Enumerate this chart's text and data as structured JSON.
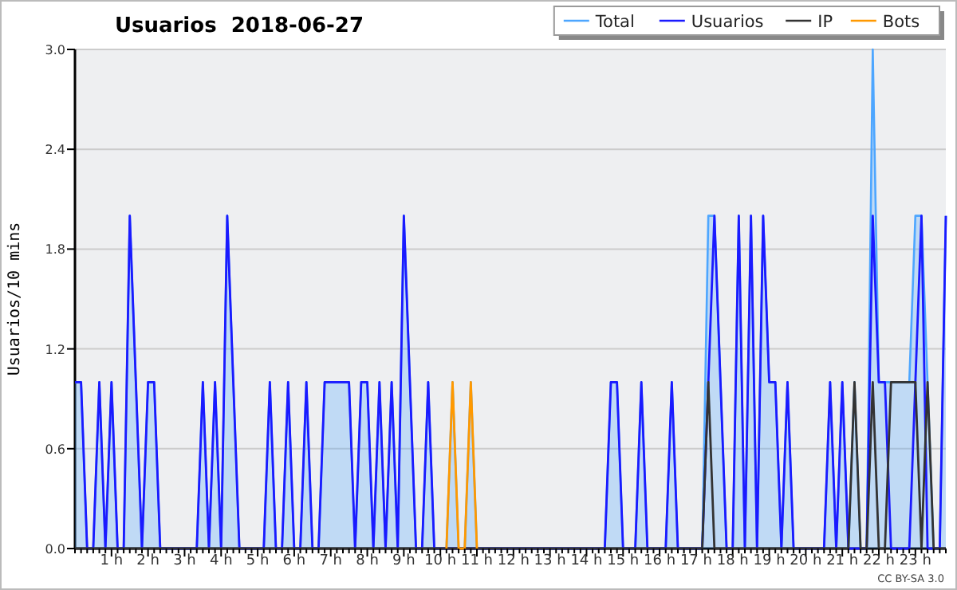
{
  "chart_data": {
    "type": "area",
    "title": "Usuarios  2018-06-27",
    "ylabel": "Usuarios/10 mins",
    "categories": [
      null,
      null,
      null,
      null,
      null,
      null,
      "1 h",
      null,
      null,
      null,
      null,
      null,
      "2 h",
      null,
      null,
      null,
      null,
      null,
      "3 h",
      null,
      null,
      null,
      null,
      null,
      "4 h",
      null,
      null,
      null,
      null,
      null,
      "5 h",
      null,
      null,
      null,
      null,
      null,
      "6 h",
      null,
      null,
      null,
      null,
      null,
      "7 h",
      null,
      null,
      null,
      null,
      null,
      "8 h",
      null,
      null,
      null,
      null,
      null,
      "9 h",
      null,
      null,
      null,
      null,
      null,
      "10 h",
      null,
      null,
      null,
      null,
      null,
      "11 h",
      null,
      null,
      null,
      null,
      null,
      "12 h",
      null,
      null,
      null,
      null,
      null,
      "13 h",
      null,
      null,
      null,
      null,
      null,
      "14 h",
      null,
      null,
      null,
      null,
      null,
      "15 h",
      null,
      null,
      null,
      null,
      null,
      "16 h",
      null,
      null,
      null,
      null,
      null,
      "17 h",
      null,
      null,
      null,
      null,
      null,
      "18 h",
      null,
      null,
      null,
      null,
      null,
      "19 h",
      null,
      null,
      null,
      null,
      null,
      "20 h",
      null,
      null,
      null,
      null,
      null,
      "21 h",
      null,
      null,
      null,
      null,
      null,
      "22 h",
      null,
      null,
      null,
      null,
      null,
      "23 h",
      null,
      null,
      null,
      null,
      null
    ],
    "series": [
      {
        "name": "Total",
        "color": "#4da6ff",
        "values": [
          1,
          1,
          0,
          0,
          1,
          0,
          1,
          0,
          0,
          2,
          1,
          0,
          1,
          1,
          0,
          0,
          0,
          0,
          0,
          0,
          0,
          1,
          0,
          1,
          0,
          2,
          1,
          0,
          0,
          0,
          0,
          0,
          1,
          0,
          0,
          1,
          0,
          0,
          1,
          0,
          0,
          1,
          1,
          1,
          1,
          1,
          0,
          1,
          1,
          0,
          1,
          0,
          1,
          0,
          2,
          1,
          0,
          0,
          1,
          0,
          0,
          0,
          1,
          0,
          0,
          1,
          0,
          0,
          0,
          0,
          0,
          0,
          0,
          0,
          0,
          0,
          0,
          0,
          0,
          0,
          0,
          0,
          0,
          0,
          0,
          0,
          0,
          0,
          1,
          1,
          0,
          0,
          0,
          1,
          0,
          0,
          0,
          0,
          1,
          0,
          0,
          0,
          0,
          0,
          2,
          2,
          1,
          0,
          0,
          2,
          0,
          2,
          0,
          2,
          1,
          1,
          0,
          1,
          0,
          0,
          0,
          0,
          0,
          0,
          1,
          0,
          1,
          0,
          1,
          0,
          0,
          3,
          1,
          1,
          1,
          1,
          1,
          1,
          2,
          2,
          1,
          0,
          0,
          2
        ]
      },
      {
        "name": "Usuarios",
        "type": "line",
        "color": "#1a1aff",
        "values": [
          1,
          1,
          0,
          0,
          1,
          0,
          1,
          0,
          0,
          2,
          1,
          0,
          1,
          1,
          0,
          0,
          0,
          0,
          0,
          0,
          0,
          1,
          0,
          1,
          0,
          2,
          1,
          0,
          0,
          0,
          0,
          0,
          1,
          0,
          0,
          1,
          0,
          0,
          1,
          0,
          0,
          1,
          1,
          1,
          1,
          1,
          0,
          1,
          1,
          0,
          1,
          0,
          1,
          0,
          2,
          1,
          0,
          0,
          1,
          0,
          0,
          0,
          0,
          0,
          0,
          0,
          0,
          0,
          0,
          0,
          0,
          0,
          0,
          0,
          0,
          0,
          0,
          0,
          0,
          0,
          0,
          0,
          0,
          0,
          0,
          0,
          0,
          0,
          1,
          1,
          0,
          0,
          0,
          1,
          0,
          0,
          0,
          0,
          1,
          0,
          0,
          0,
          0,
          0,
          1,
          2,
          1,
          0,
          0,
          2,
          0,
          2,
          0,
          2,
          1,
          1,
          0,
          1,
          0,
          0,
          0,
          0,
          0,
          0,
          1,
          0,
          1,
          0,
          0,
          0,
          0,
          2,
          1,
          1,
          0,
          0,
          0,
          0,
          1,
          2,
          0,
          0,
          0,
          2
        ]
      },
      {
        "name": "IP",
        "type": "line",
        "color": "#333333",
        "values": [
          0,
          0,
          0,
          0,
          0,
          0,
          0,
          0,
          0,
          0,
          0,
          0,
          0,
          0,
          0,
          0,
          0,
          0,
          0,
          0,
          0,
          0,
          0,
          0,
          0,
          0,
          0,
          0,
          0,
          0,
          0,
          0,
          0,
          0,
          0,
          0,
          0,
          0,
          0,
          0,
          0,
          0,
          0,
          0,
          0,
          0,
          0,
          0,
          0,
          0,
          0,
          0,
          0,
          0,
          0,
          0,
          0,
          0,
          0,
          0,
          0,
          0,
          0,
          0,
          0,
          0,
          0,
          0,
          0,
          0,
          0,
          0,
          0,
          0,
          0,
          0,
          0,
          0,
          0,
          0,
          0,
          0,
          0,
          0,
          0,
          0,
          0,
          0,
          0,
          0,
          0,
          0,
          0,
          0,
          0,
          0,
          0,
          0,
          0,
          0,
          0,
          0,
          0,
          0,
          1,
          0,
          0,
          0,
          0,
          0,
          0,
          0,
          0,
          0,
          0,
          0,
          0,
          0,
          0,
          0,
          0,
          0,
          0,
          0,
          0,
          0,
          0,
          0,
          1,
          0,
          0,
          1,
          0,
          0,
          1,
          1,
          1,
          1,
          1,
          0,
          1,
          0,
          0,
          0
        ]
      },
      {
        "name": "Bots",
        "type": "line",
        "color": "#ff9900",
        "values": [
          null,
          null,
          null,
          null,
          null,
          null,
          null,
          null,
          null,
          null,
          null,
          null,
          null,
          null,
          null,
          null,
          null,
          null,
          null,
          null,
          null,
          null,
          null,
          null,
          null,
          null,
          null,
          null,
          null,
          null,
          null,
          null,
          null,
          null,
          null,
          null,
          null,
          null,
          null,
          null,
          null,
          null,
          null,
          null,
          null,
          null,
          null,
          null,
          null,
          null,
          null,
          null,
          null,
          null,
          null,
          null,
          null,
          null,
          null,
          null,
          null,
          0,
          1,
          0,
          0,
          1,
          0,
          null,
          null,
          null,
          null,
          null,
          null,
          null,
          null,
          null,
          null,
          null,
          null,
          null,
          null,
          null,
          null,
          null,
          null,
          null,
          null,
          null,
          null,
          null,
          null,
          null,
          null,
          null,
          null,
          null,
          null,
          null,
          null,
          null,
          null,
          null,
          null,
          null,
          null,
          null,
          null,
          null,
          null,
          null,
          null,
          null,
          null,
          null,
          null,
          null,
          null,
          null,
          null,
          null,
          null,
          null,
          null,
          null,
          null,
          null,
          null,
          null,
          null,
          null,
          null,
          null,
          null,
          null,
          null,
          null,
          null,
          null,
          null,
          null,
          null,
          null,
          null,
          null
        ]
      }
    ],
    "ylim": [
      0,
      3
    ],
    "yticks": [
      {
        "value": 0,
        "label": "0.0"
      },
      {
        "value": 0.6,
        "label": "0.6"
      },
      {
        "value": 1.2,
        "label": "1.2"
      },
      {
        "value": 1.8,
        "label": "1.8"
      },
      {
        "value": 2.4,
        "label": "2.4"
      },
      {
        "value": 3,
        "label": "3.0"
      }
    ],
    "grid": "y",
    "legend": "top right",
    "line_style": "solid",
    "annotations": [
      "CC BY-SA 3.0"
    ]
  }
}
